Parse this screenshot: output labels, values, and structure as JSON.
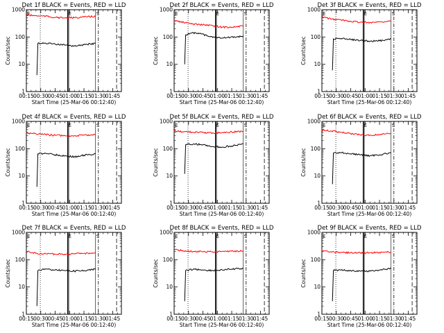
{
  "chart_data": {
    "type": "line",
    "layout": "3x3 grid",
    "x_tick_labels": [
      "00:15",
      "00:30",
      "00:45",
      "01:00",
      "01:15",
      "01:30",
      "01:45"
    ],
    "x_ticks_min": [
      15,
      30,
      45,
      60,
      75,
      90,
      105
    ],
    "xlim_min": [
      15,
      114
    ],
    "y_scale": "log",
    "ylim": [
      1,
      1000
    ],
    "y_tick_labels": [
      "1",
      "10",
      "100",
      "1000"
    ],
    "y_ticks": [
      1,
      10,
      100,
      1000
    ],
    "ylabel": "Counts/sec",
    "xlabel": "Start Time (25-Mar-06 00:12:40)",
    "colors": {
      "events": "#000000",
      "lld": "#ff0000"
    },
    "markers": {
      "dotted_line_min": 29.5,
      "double_lines_min": [
        58,
        59
      ],
      "markers_min": [
        15,
        87
      ],
      "dashdot_line_min": 90,
      "dashed_line_min": 109,
      "labels": [
        "E",
        "E",
        "S"
      ]
    },
    "panels": [
      {
        "title": "Det 1f BLACK = Events, RED = LLD",
        "series": [
          {
            "name": "Events",
            "x": [
              26,
              27,
              35,
              45,
              55,
              65,
              75,
              87
            ],
            "y": [
              4,
              58,
              60,
              55,
              50,
              47,
              52,
              58
            ]
          },
          {
            "name": "LLD",
            "x": [
              15,
              25,
              35,
              45,
              55,
              65,
              75,
              87
            ],
            "y": [
              640,
              600,
              580,
              520,
              500,
              510,
              540,
              570
            ]
          }
        ]
      },
      {
        "title": "Det 2f BLACK = Events, RED = LLD",
        "series": [
          {
            "name": "Events",
            "x": [
              26,
              27,
              30,
              40,
              50,
              60,
              70,
              80,
              87
            ],
            "y": [
              10,
              120,
              135,
              140,
              110,
              95,
              95,
              100,
              110
            ]
          },
          {
            "name": "LLD",
            "x": [
              15,
              25,
              35,
              45,
              55,
              65,
              75,
              87
            ],
            "y": [
              400,
              340,
              300,
              280,
              260,
              230,
              230,
              250
            ]
          }
        ]
      },
      {
        "title": "Det 3f BLACK = Events, RED = LLD",
        "series": [
          {
            "name": "Events",
            "x": [
              26,
              27,
              35,
              45,
              55,
              65,
              75,
              87
            ],
            "y": [
              6,
              85,
              88,
              80,
              75,
              70,
              72,
              85
            ]
          },
          {
            "name": "LLD",
            "x": [
              15,
              25,
              35,
              45,
              55,
              65,
              75,
              87
            ],
            "y": [
              550,
              450,
              420,
              380,
              350,
              340,
              360,
              380
            ]
          }
        ]
      },
      {
        "title": "Det 4f BLACK = Events, RED = LLD",
        "series": [
          {
            "name": "Events",
            "x": [
              26,
              27,
              35,
              45,
              55,
              65,
              75,
              87
            ],
            "y": [
              4,
              65,
              68,
              60,
              55,
              50,
              58,
              65
            ]
          },
          {
            "name": "LLD",
            "x": [
              15,
              25,
              35,
              45,
              55,
              65,
              75,
              87
            ],
            "y": [
              380,
              350,
              330,
              310,
              300,
              300,
              310,
              330
            ]
          }
        ]
      },
      {
        "title": "Det 5f BLACK = Events, RED = LLD",
        "series": [
          {
            "name": "Events",
            "x": [
              26,
              27,
              35,
              45,
              55,
              65,
              75,
              87
            ],
            "y": [
              12,
              140,
              150,
              140,
              120,
              115,
              125,
              150
            ]
          },
          {
            "name": "LLD",
            "x": [
              15,
              25,
              35,
              45,
              55,
              65,
              75,
              87
            ],
            "y": [
              450,
              420,
              400,
              390,
              380,
              390,
              410,
              430
            ]
          }
        ]
      },
      {
        "title": "Det 6f BLACK = Events, RED = LLD",
        "series": [
          {
            "name": "Events",
            "x": [
              26,
              27,
              35,
              45,
              55,
              65,
              75,
              87
            ],
            "y": [
              5,
              70,
              72,
              65,
              60,
              55,
              60,
              70
            ]
          },
          {
            "name": "LLD",
            "x": [
              15,
              25,
              35,
              45,
              55,
              65,
              75,
              87
            ],
            "y": [
              500,
              440,
              400,
              360,
              320,
              310,
              330,
              360
            ]
          }
        ]
      },
      {
        "title": "Det 7f BLACK = Events, RED = LLD",
        "series": [
          {
            "name": "Events",
            "x": [
              26,
              27,
              35,
              45,
              55,
              65,
              75,
              87
            ],
            "y": [
              2,
              40,
              45,
              42,
              40,
              38,
              40,
              45
            ]
          },
          {
            "name": "LLD",
            "x": [
              15,
              25,
              35,
              45,
              55,
              65,
              75,
              87
            ],
            "y": [
              200,
              170,
              165,
              160,
              160,
              165,
              170,
              180
            ]
          }
        ]
      },
      {
        "title": "Det 8f BLACK = Events, RED = LLD",
        "series": [
          {
            "name": "Events",
            "x": [
              26,
              27,
              35,
              45,
              55,
              65,
              75,
              87
            ],
            "y": [
              3,
              40,
              45,
              42,
              40,
              42,
              45,
              48
            ]
          },
          {
            "name": "LLD",
            "x": [
              15,
              25,
              35,
              45,
              55,
              65,
              75,
              87
            ],
            "y": [
              240,
              210,
              200,
              195,
              195,
              200,
              205,
              210
            ]
          }
        ]
      },
      {
        "title": "Det 9f BLACK = Events, RED = LLD",
        "series": [
          {
            "name": "Events",
            "x": [
              26,
              27,
              35,
              45,
              55,
              65,
              75,
              87
            ],
            "y": [
              3,
              40,
              42,
              40,
              38,
              38,
              42,
              48
            ]
          },
          {
            "name": "LLD",
            "x": [
              15,
              25,
              35,
              45,
              55,
              65,
              75,
              87
            ],
            "y": [
              210,
              190,
              185,
              180,
              178,
              180,
              185,
              190
            ]
          }
        ]
      }
    ]
  }
}
